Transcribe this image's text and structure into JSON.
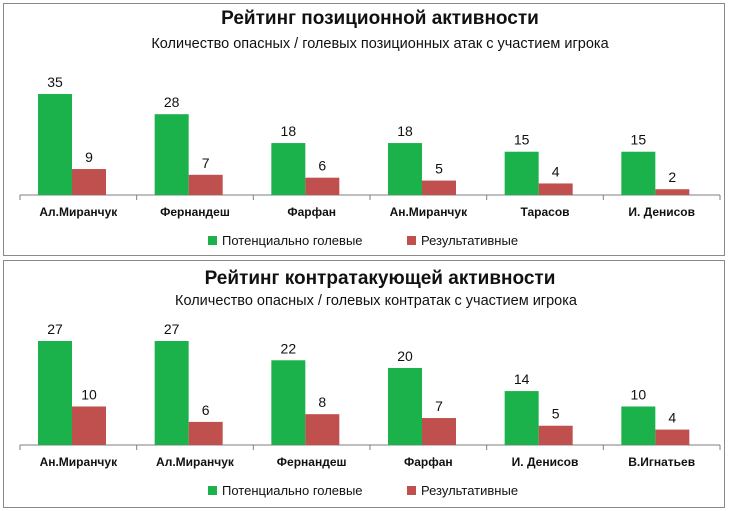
{
  "colors": {
    "potential": "#1cb24b",
    "result": "#c0504d",
    "axis": "#7f7f7f",
    "border": "#8a8a8a"
  },
  "legend": {
    "potential": "Потенциально голевые",
    "result": "Результативные"
  },
  "chart_data": [
    {
      "type": "bar",
      "title": "Рейтинг позиционной активности",
      "subtitle": "Количество опасных / голевых позиционных атак с участием игрока",
      "categories": [
        "Ал.Миранчук",
        "Фернандеш",
        "Фарфан",
        "Ан.Миранчук",
        "Тарасов",
        "И. Денисов"
      ],
      "series": [
        {
          "name": "Потенциально голевые",
          "values": [
            35,
            28,
            18,
            18,
            15,
            15
          ]
        },
        {
          "name": "Результативные",
          "values": [
            9,
            7,
            6,
            5,
            4,
            2
          ]
        }
      ],
      "ylim": [
        0,
        35
      ],
      "grid": false,
      "legend_position": "bottom"
    },
    {
      "type": "bar",
      "title": "Рейтинг контратакующей активности",
      "subtitle": "Количество опасных / голевых контратак с участием игрока",
      "categories": [
        "Ан.Миранчук",
        "Ал.Миранчук",
        "Фернандеш",
        "Фарфан",
        "И. Денисов",
        "В.Игнатьев"
      ],
      "series": [
        {
          "name": "Потенциально голевые",
          "values": [
            27,
            27,
            22,
            20,
            14,
            10
          ]
        },
        {
          "name": "Результативные",
          "values": [
            10,
            6,
            8,
            7,
            5,
            4
          ]
        }
      ],
      "ylim": [
        0,
        27
      ],
      "grid": false,
      "legend_position": "bottom"
    }
  ]
}
